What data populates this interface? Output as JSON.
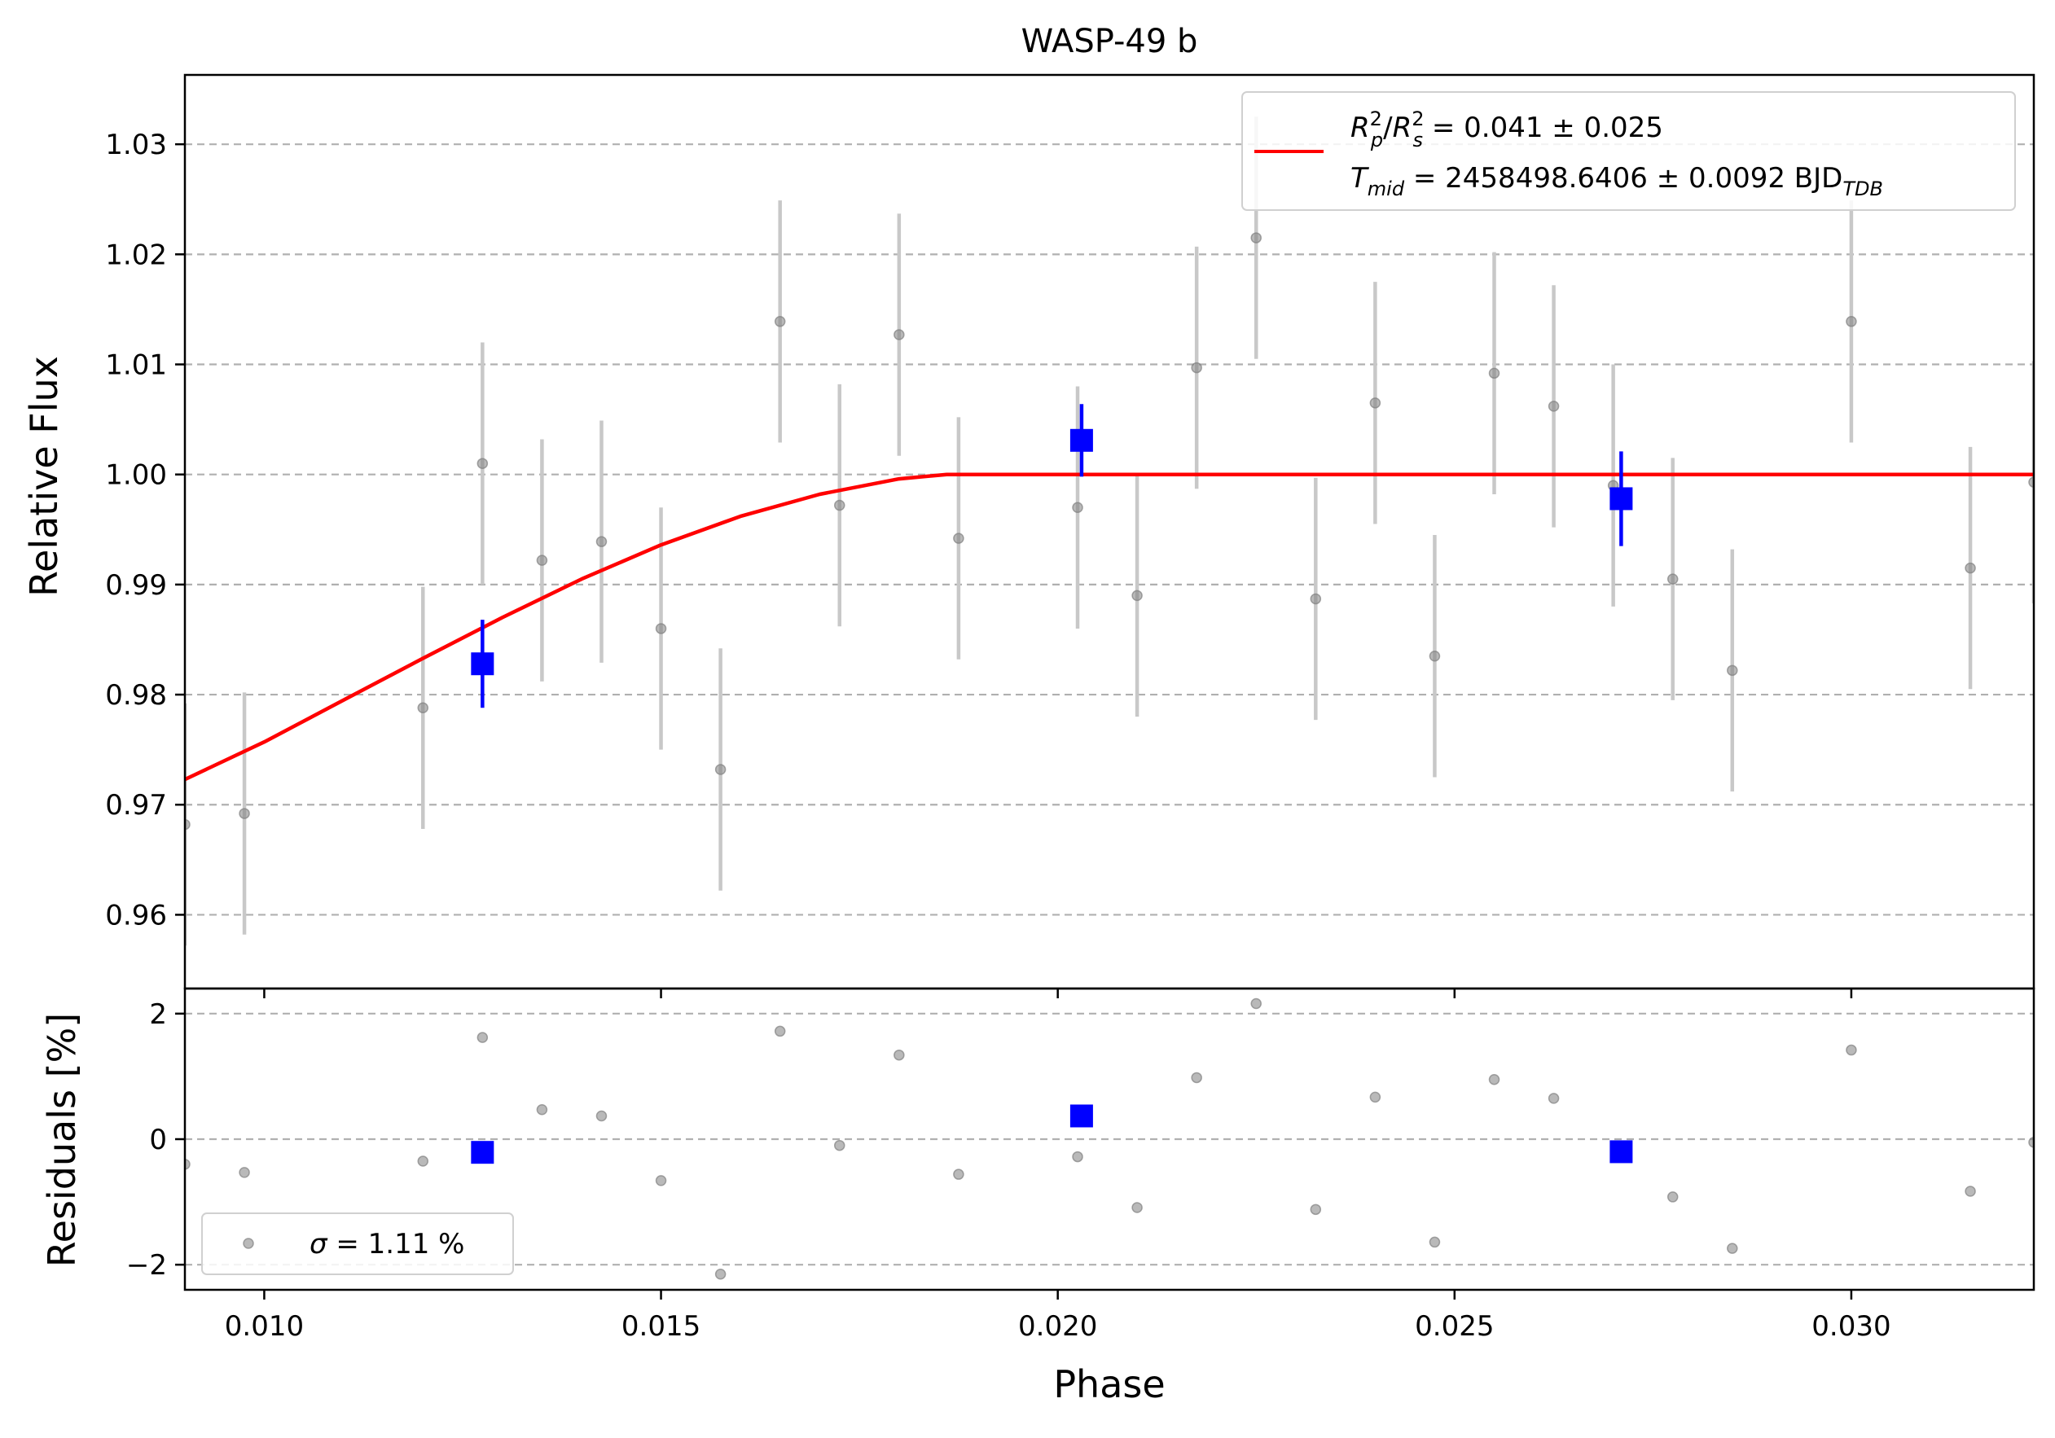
{
  "chart_data": {
    "type": "scatter",
    "title": "WASP-49 b",
    "xlabel": "Phase",
    "xlim": [
      0.009,
      0.0323
    ],
    "x_ticks": [
      {
        "value": 0.01,
        "label": "0.010"
      },
      {
        "value": 0.015,
        "label": "0.015"
      },
      {
        "value": 0.02,
        "label": "0.020"
      },
      {
        "value": 0.025,
        "label": "0.025"
      },
      {
        "value": 0.03,
        "label": "0.030"
      }
    ],
    "grid": "horizontal dashed",
    "panels": {
      "flux": {
        "ylabel": "Relative Flux",
        "ylim": [
          0.9533,
          1.0363
        ],
        "y_ticks": [
          {
            "value": 0.96,
            "label": "0.96"
          },
          {
            "value": 0.97,
            "label": "0.97"
          },
          {
            "value": 0.98,
            "label": "0.98"
          },
          {
            "value": 0.99,
            "label": "0.99"
          },
          {
            "value": 1.0,
            "label": "1.00"
          },
          {
            "value": 1.01,
            "label": "1.01"
          },
          {
            "value": 1.02,
            "label": "1.02"
          },
          {
            "value": 1.03,
            "label": "1.03"
          }
        ],
        "legend_position": "upper right",
        "legend": {
          "line1_main": "R",
          "line1_rest": " = 0.041 ± 0.025",
          "line2_main": "T",
          "line2_sub": "mid",
          "line2_rest": " = 2458498.6406 ± 0.0092 BJD",
          "line2_unit_sub": "TDB",
          "sub_p": "p",
          "sub_s": "s",
          "sup_2": "2"
        },
        "series": [
          {
            "kind": "raw",
            "color": "#808080",
            "errorbar_color": "#c8c8c8",
            "points": [
              {
                "x": 0.009,
                "y": 0.9682,
                "err": 0.011
              },
              {
                "x": 0.00975,
                "y": 0.9692,
                "err": 0.011
              },
              {
                "x": 0.012,
                "y": 0.9788,
                "err": 0.011
              },
              {
                "x": 0.01275,
                "y": 1.001,
                "err": 0.011
              },
              {
                "x": 0.0135,
                "y": 0.9922,
                "err": 0.011
              },
              {
                "x": 0.01425,
                "y": 0.9939,
                "err": 0.011
              },
              {
                "x": 0.015,
                "y": 0.986,
                "err": 0.011
              },
              {
                "x": 0.01575,
                "y": 0.9732,
                "err": 0.011
              },
              {
                "x": 0.0165,
                "y": 1.0139,
                "err": 0.011
              },
              {
                "x": 0.01725,
                "y": 0.9972,
                "err": 0.011
              },
              {
                "x": 0.018,
                "y": 1.0127,
                "err": 0.011
              },
              {
                "x": 0.01875,
                "y": 0.9942,
                "err": 0.011
              },
              {
                "x": 0.02025,
                "y": 0.997,
                "err": 0.011
              },
              {
                "x": 0.021,
                "y": 0.989,
                "err": 0.011
              },
              {
                "x": 0.02175,
                "y": 1.0097,
                "err": 0.011
              },
              {
                "x": 0.0225,
                "y": 1.0215,
                "err": 0.011
              },
              {
                "x": 0.02325,
                "y": 0.9887,
                "err": 0.011
              },
              {
                "x": 0.024,
                "y": 1.0065,
                "err": 0.011
              },
              {
                "x": 0.02475,
                "y": 0.9835,
                "err": 0.011
              },
              {
                "x": 0.0255,
                "y": 1.0092,
                "err": 0.011
              },
              {
                "x": 0.02625,
                "y": 1.0062,
                "err": 0.011
              },
              {
                "x": 0.027,
                "y": 0.999,
                "err": 0.011
              },
              {
                "x": 0.02775,
                "y": 0.9905,
                "err": 0.011
              },
              {
                "x": 0.0285,
                "y": 0.9822,
                "err": 0.011
              },
              {
                "x": 0.03,
                "y": 1.0139,
                "err": 0.011
              },
              {
                "x": 0.0315,
                "y": 0.9915,
                "err": 0.011
              },
              {
                "x": 0.0323,
                "y": 0.9993,
                "err": 0.011
              }
            ]
          },
          {
            "kind": "binned",
            "color": "#0000ff",
            "points": [
              {
                "x": 0.01275,
                "y": 0.9828,
                "err": 0.004
              },
              {
                "x": 0.0203,
                "y": 1.0031,
                "err": 0.0033
              },
              {
                "x": 0.0271,
                "y": 0.9978,
                "err": 0.0043
              }
            ]
          },
          {
            "kind": "model",
            "color": "#ff0000",
            "x": [
              0.009,
              0.01,
              0.011,
              0.012,
              0.013,
              0.014,
              0.015,
              0.016,
              0.017,
              0.018,
              0.0186,
              0.02,
              0.025,
              0.03,
              0.0323
            ],
            "y": [
              0.9723,
              0.9757,
              0.9795,
              0.9833,
              0.987,
              0.9905,
              0.9936,
              0.9962,
              0.9982,
              0.9996,
              1.0,
              1.0,
              1.0,
              1.0,
              1.0
            ]
          }
        ]
      },
      "residuals": {
        "ylabel": "Residuals [%]",
        "ylim": [
          -2.4,
          2.4
        ],
        "y_ticks": [
          {
            "value": -2,
            "label": "−2"
          },
          {
            "value": 0,
            "label": "0"
          },
          {
            "value": 2,
            "label": "2"
          }
        ],
        "legend_position": "lower left",
        "legend": {
          "sigma_symbol": "σ",
          "text": " = 1.11 %"
        },
        "series": [
          {
            "kind": "raw",
            "color": "#808080",
            "points": [
              {
                "x": 0.009,
                "y": -0.4
              },
              {
                "x": 0.00975,
                "y": -0.53
              },
              {
                "x": 0.012,
                "y": -0.35
              },
              {
                "x": 0.01275,
                "y": 1.62
              },
              {
                "x": 0.0135,
                "y": 0.47
              },
              {
                "x": 0.01425,
                "y": 0.37
              },
              {
                "x": 0.015,
                "y": -0.66
              },
              {
                "x": 0.01575,
                "y": -2.15
              },
              {
                "x": 0.0165,
                "y": 1.72
              },
              {
                "x": 0.01725,
                "y": -0.1
              },
              {
                "x": 0.018,
                "y": 1.34
              },
              {
                "x": 0.01875,
                "y": -0.56
              },
              {
                "x": 0.02025,
                "y": -0.28
              },
              {
                "x": 0.021,
                "y": -1.09
              },
              {
                "x": 0.02175,
                "y": 0.98
              },
              {
                "x": 0.0225,
                "y": 2.16
              },
              {
                "x": 0.02325,
                "y": -1.12
              },
              {
                "x": 0.024,
                "y": 0.67
              },
              {
                "x": 0.02475,
                "y": -1.64
              },
              {
                "x": 0.0255,
                "y": 0.95
              },
              {
                "x": 0.02625,
                "y": 0.65
              },
              {
                "x": 0.02775,
                "y": -0.92
              },
              {
                "x": 0.0285,
                "y": -1.74
              },
              {
                "x": 0.03,
                "y": 1.42
              },
              {
                "x": 0.0315,
                "y": -0.83
              },
              {
                "x": 0.0323,
                "y": -0.05
              }
            ]
          },
          {
            "kind": "binned",
            "color": "#0000ff",
            "points": [
              {
                "x": 0.01275,
                "y": -0.21
              },
              {
                "x": 0.0203,
                "y": 0.37
              },
              {
                "x": 0.0271,
                "y": -0.2
              }
            ]
          }
        ]
      }
    }
  }
}
